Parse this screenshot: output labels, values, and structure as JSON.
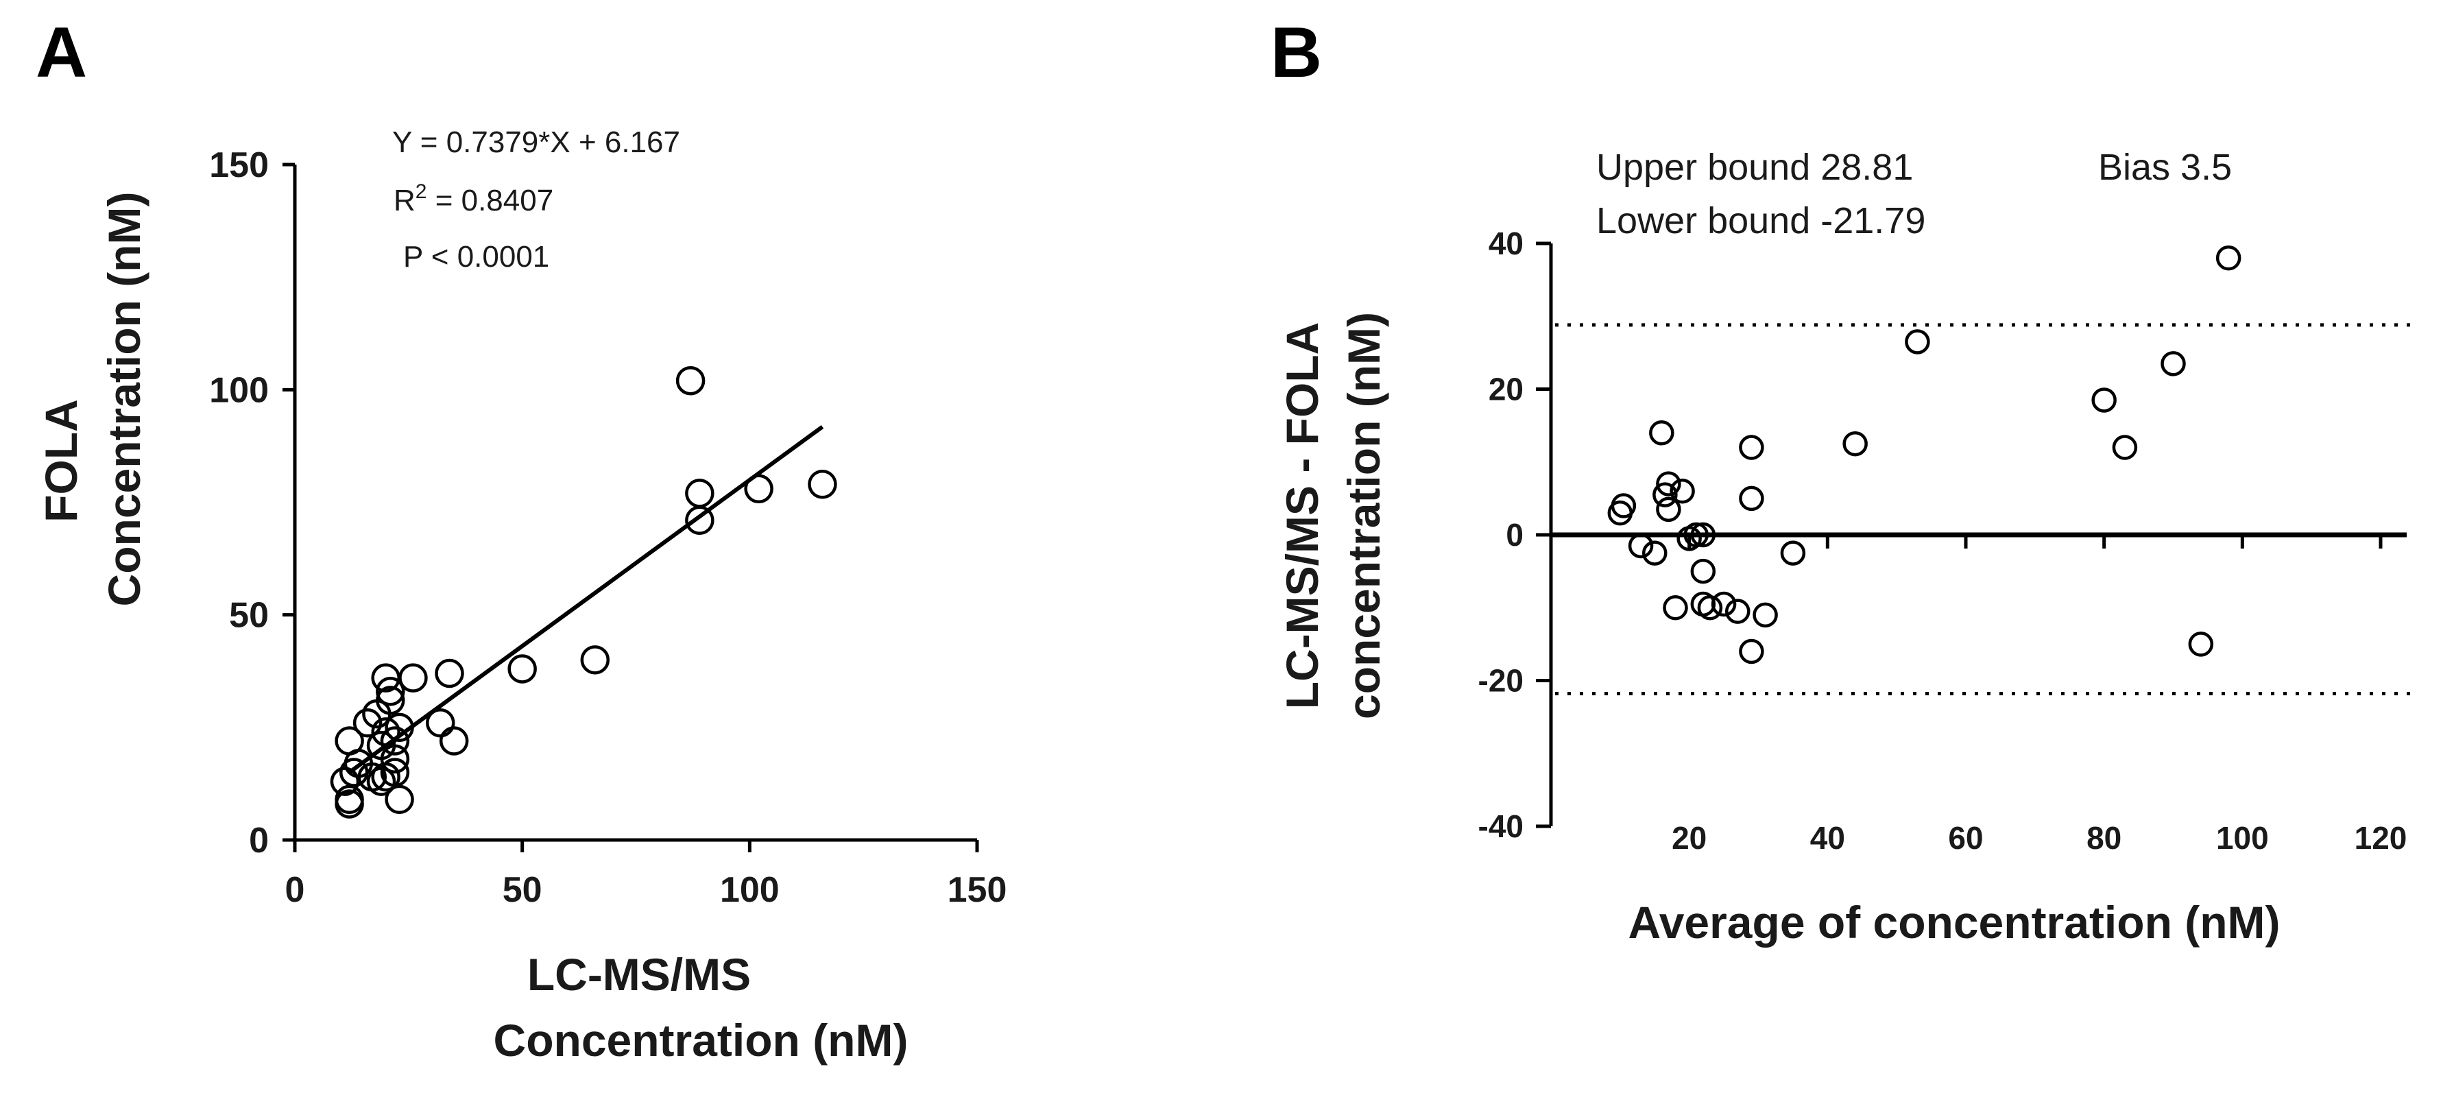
{
  "chart_data": [
    {
      "panel": "A",
      "type": "scatter",
      "title": "",
      "xlabel": "LC-MS/MS Concentration (nM)",
      "xlabel_lines": [
        "LC-MS/MS",
        "Concentration (nM)"
      ],
      "ylabel": "FOLA Concentration (nM)",
      "ylabel_lines": [
        "FOLA",
        "Concentration (nM)"
      ],
      "xlim": [
        0,
        150
      ],
      "ylim": [
        0,
        150
      ],
      "xticks": [
        0,
        50,
        100,
        150
      ],
      "yticks": [
        0,
        50,
        100,
        150
      ],
      "grid": false,
      "annotations": {
        "equation": "Y = 0.7379*X + 6.167",
        "r2_label": "R",
        "r2_sup": "2",
        "r2_value": " =  0.8407",
        "p_value": "P < 0.0001"
      },
      "fit": {
        "slope": 0.7379,
        "intercept": 6.167,
        "x_range": [
          12,
          116
        ]
      },
      "series": [
        {
          "name": "samples",
          "x": [
            12,
            12,
            11,
            12,
            13,
            14,
            16,
            17,
            18,
            19,
            19,
            20,
            20,
            21,
            22,
            22,
            23,
            20,
            21,
            22,
            23,
            26,
            32,
            34,
            35,
            50,
            66,
            87,
            89,
            89,
            102,
            116
          ],
          "y": [
            8,
            9,
            13,
            22,
            15,
            17,
            26,
            14,
            28,
            13,
            21,
            24,
            36,
            31,
            18,
            15,
            9,
            14,
            33,
            22,
            25,
            36,
            26,
            37,
            22,
            38,
            40,
            102,
            77,
            71,
            78,
            79
          ]
        }
      ]
    },
    {
      "panel": "B",
      "type": "scatter",
      "title": "",
      "xlabel": "Average of  concentration (nM)",
      "ylabel": "LC-MS/MS - FOLA concentration (nM)",
      "ylabel_lines": [
        "LC-MS/MS - FOLA",
        "concentration (nM)"
      ],
      "xlim": [
        0,
        120
      ],
      "ylim": [
        -40,
        40
      ],
      "xticks": [
        20,
        40,
        60,
        80,
        100,
        120
      ],
      "yticks": [
        -40,
        -20,
        0,
        20,
        40
      ],
      "grid": false,
      "annotations": {
        "upper_bound_text": "Upper bound 28.81",
        "lower_bound_text": "Lower bound -21.79",
        "bias_text": "Bias 3.5"
      },
      "bias": 3.5,
      "upper_bound": 28.81,
      "lower_bound": -21.79,
      "zero_line": 0,
      "series": [
        {
          "name": "differences",
          "x": [
            10,
            10.5,
            13,
            15,
            16,
            16.5,
            17,
            17,
            18,
            19,
            20,
            21,
            22,
            22,
            22,
            23,
            25,
            27,
            29,
            29,
            29,
            31,
            35,
            44,
            53,
            80,
            83,
            90,
            94,
            98
          ],
          "y": [
            3,
            4,
            -1.5,
            -2.5,
            14,
            5.5,
            3.5,
            7,
            -10,
            6,
            -0.5,
            0,
            0,
            -5,
            -9.5,
            -10,
            -9.5,
            -10.5,
            12,
            5,
            -16,
            -11,
            -2.5,
            12.5,
            26.5,
            18.5,
            12,
            23.5,
            -15,
            38
          ]
        }
      ]
    }
  ]
}
